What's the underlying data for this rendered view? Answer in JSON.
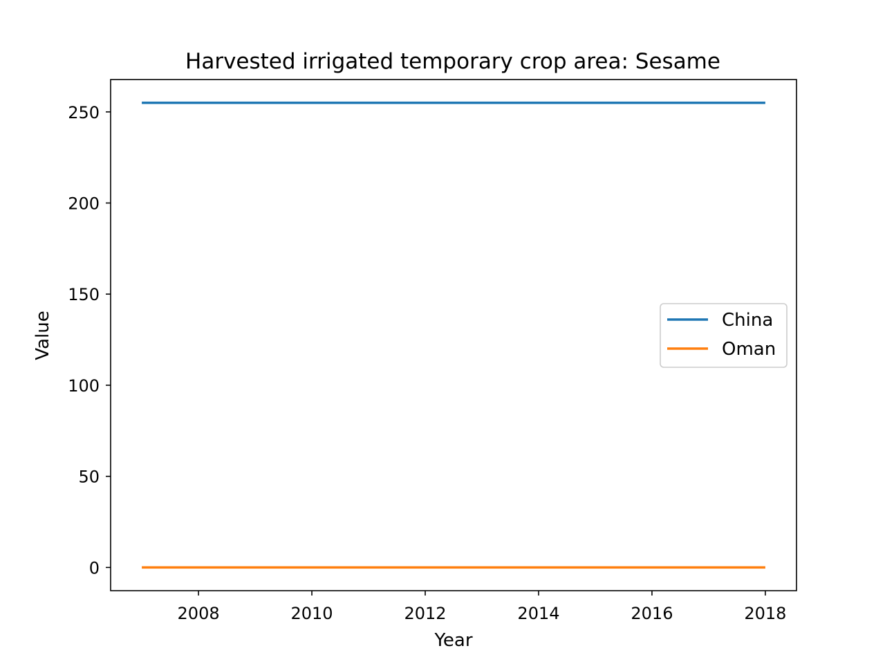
{
  "chart_data": {
    "type": "line",
    "title": "Harvested irrigated temporary crop area: Sesame",
    "xlabel": "Year",
    "ylabel": "Value",
    "x": [
      2007,
      2008,
      2009,
      2010,
      2011,
      2012,
      2013,
      2014,
      2015,
      2016,
      2017,
      2018
    ],
    "series": [
      {
        "name": "China",
        "color": "#1f77b4",
        "values": [
          255,
          255,
          255,
          255,
          255,
          255,
          255,
          255,
          255,
          255,
          255,
          255
        ]
      },
      {
        "name": "Oman",
        "color": "#ff7f0e",
        "values": [
          0,
          0,
          0,
          0,
          0,
          0,
          0,
          0,
          0,
          0,
          0,
          0
        ]
      }
    ],
    "xlim": [
      2006.45,
      2018.55
    ],
    "ylim": [
      -12.75,
      267.75
    ],
    "xticks": [
      2008,
      2010,
      2012,
      2014,
      2016,
      2018
    ],
    "yticks": [
      0,
      50,
      100,
      150,
      200,
      250
    ],
    "grid": false,
    "legend_position": "center-right"
  }
}
